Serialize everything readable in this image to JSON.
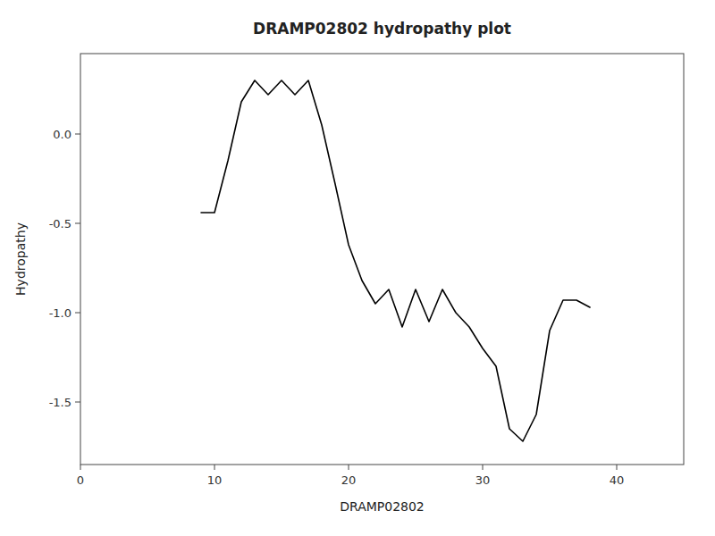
{
  "chart_data": {
    "type": "line",
    "title": "DRAMP02802 hydropathy plot",
    "xlabel": "DRAMP02802",
    "ylabel": "Hydropathy",
    "x": [
      9,
      10,
      11,
      12,
      13,
      14,
      15,
      16,
      17,
      18,
      19,
      20,
      21,
      22,
      23,
      24,
      25,
      26,
      27,
      28,
      29,
      30,
      31,
      32,
      33,
      34,
      35,
      36,
      37,
      38
    ],
    "values": [
      -0.44,
      -0.44,
      -0.15,
      0.18,
      0.3,
      0.22,
      0.3,
      0.22,
      0.3,
      0.05,
      -0.28,
      -0.62,
      -0.82,
      -0.95,
      -0.87,
      -1.08,
      -0.87,
      -1.05,
      -0.87,
      -1.0,
      -1.08,
      -1.2,
      -1.3,
      -1.65,
      -1.72,
      -1.57,
      -1.1,
      -0.93,
      -0.93,
      -0.97
    ],
    "color": "#000000",
    "xlim": [
      0,
      45
    ],
    "ylim": [
      -1.85,
      0.45
    ],
    "xticks": [
      0,
      10,
      20,
      30,
      40
    ],
    "yticks": [
      {
        "value": 0.0,
        "label": "0.0"
      },
      -0.5,
      {
        "value": -1.0,
        "label": "-1.0"
      },
      -1.5
    ],
    "grid": false
  }
}
